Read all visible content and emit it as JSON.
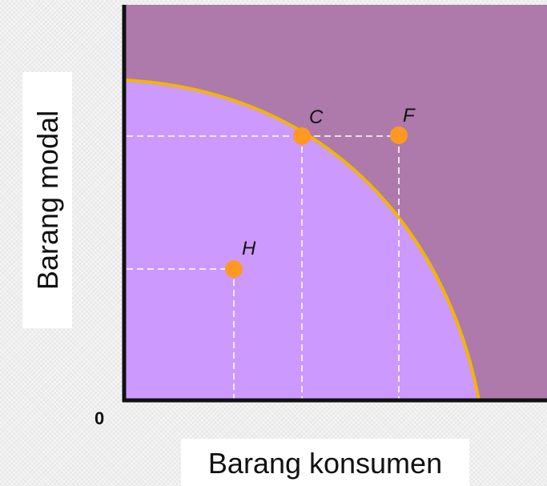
{
  "axes": {
    "y_label": "Barang modal",
    "x_label": "Barang konsumen",
    "origin_label": "0"
  },
  "points": [
    {
      "id": "C",
      "label": "C"
    },
    {
      "id": "F",
      "label": "F"
    },
    {
      "id": "H",
      "label": "H"
    }
  ],
  "colors": {
    "outside_region": "#ad7aab",
    "inside_region": "#cc99ff",
    "frontier_curve": "#f2b600",
    "points": "#ff9922",
    "guide_lines": "#ffffff",
    "axes": "#111111"
  }
}
